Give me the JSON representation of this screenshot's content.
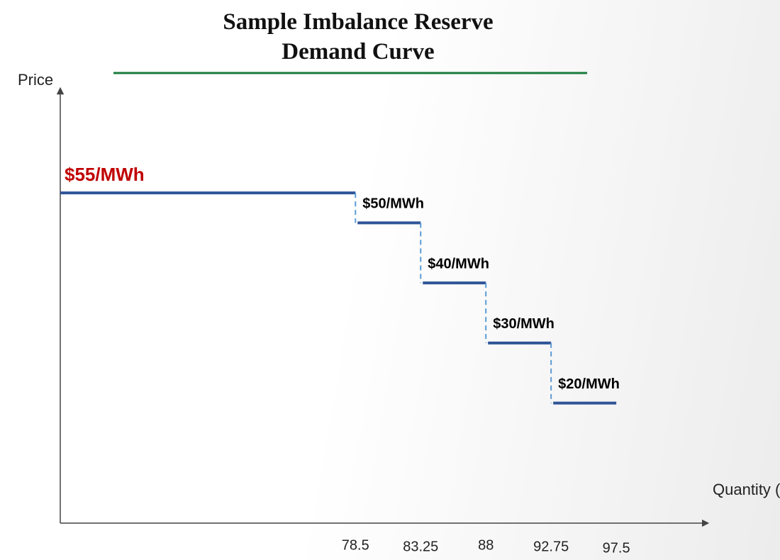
{
  "chart_data": {
    "type": "step",
    "title": "Sample Imbalance Reserve Demand Curve",
    "y_label": "Price",
    "x_label": "Quantity (MW)",
    "xlim": [
      57,
      104
    ],
    "ylim": [
      0,
      70
    ],
    "xticks": [
      78.5,
      83.25,
      88,
      92.75,
      97.5
    ],
    "series": [
      {
        "color": "#2f5597",
        "x": [
          78.5,
          83.25,
          88,
          92.75,
          97.5
        ],
        "values": [
          55,
          50,
          40,
          30,
          20
        ],
        "value_labels": [
          "$55/MWh",
          "$50/MWh",
          "$40/MWh",
          "$30/MWh",
          "$20/MWh"
        ],
        "value_label_colors": [
          "#c00000",
          "#000000",
          "#000000",
          "#000000",
          "#000000"
        ]
      }
    ],
    "connector_color": "#5b9bd5",
    "title_rule_color": "#1a7a3c"
  }
}
